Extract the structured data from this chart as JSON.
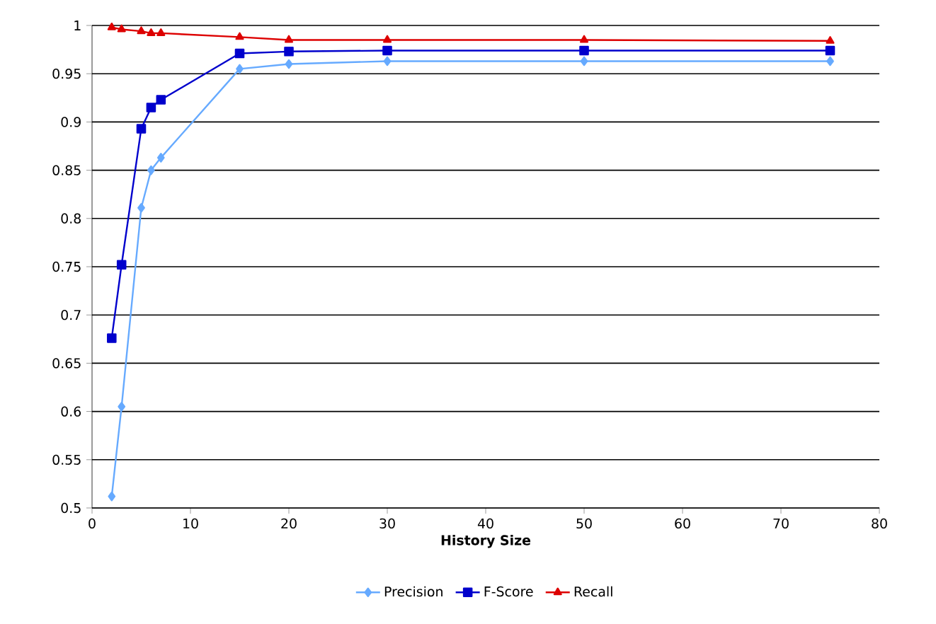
{
  "chart_data": {
    "type": "line",
    "xlabel": "History Size",
    "x": [
      2,
      3,
      5,
      6,
      7,
      15,
      20,
      30,
      50,
      75
    ],
    "series": [
      {
        "name": "Precision",
        "color": "#66aaff",
        "marker": "diamond",
        "values": [
          0.512,
          0.605,
          0.811,
          0.85,
          0.863,
          0.955,
          0.96,
          0.963,
          0.963,
          0.963
        ]
      },
      {
        "name": "F-Score",
        "color": "#0000cc",
        "marker": "square",
        "values": [
          0.676,
          0.752,
          0.893,
          0.915,
          0.923,
          0.971,
          0.973,
          0.974,
          0.974,
          0.974
        ]
      },
      {
        "name": "Recall",
        "color": "#dd0000",
        "marker": "triangle",
        "values": [
          0.998,
          0.996,
          0.994,
          0.992,
          0.992,
          0.988,
          0.985,
          0.985,
          0.985,
          0.984
        ]
      }
    ],
    "xlim": [
      0,
      80
    ],
    "xticks": [
      0,
      10,
      20,
      30,
      40,
      50,
      60,
      70,
      80
    ],
    "ylim": [
      0.5,
      1
    ],
    "yticks": [
      0.5,
      0.55,
      0.6,
      0.65,
      0.7,
      0.75,
      0.8,
      0.85,
      0.9,
      0.95,
      1
    ],
    "grid": "y",
    "legend": "bottom",
    "line_style": "solid"
  }
}
